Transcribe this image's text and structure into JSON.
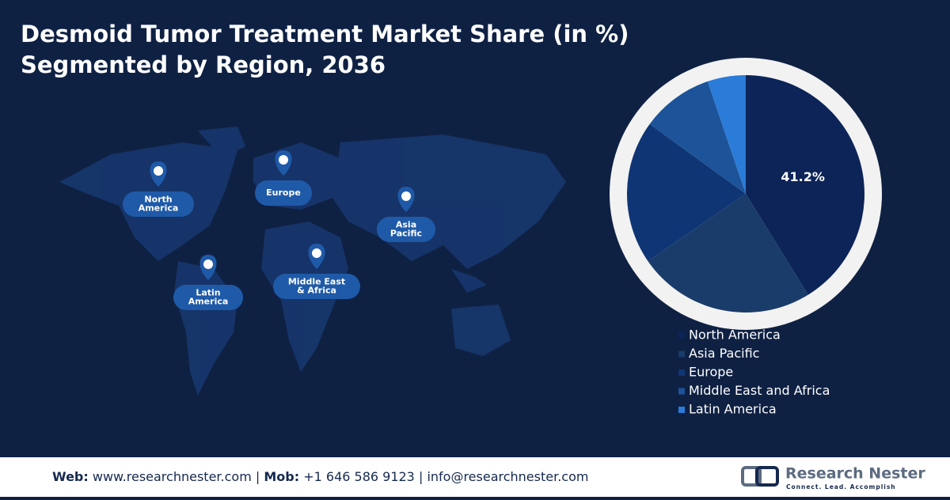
{
  "chart_data": {
    "type": "pie",
    "title": "Desmoid Tumor Treatment Market Share (in %)",
    "subtitle": "Segmented by Region, 2036",
    "categories": [
      "North America",
      "Asia Pacific",
      "Europe",
      "Middle East and Africa",
      "Latin America"
    ],
    "values": [
      41.2,
      24.2,
      19.6,
      9.8,
      5.2
    ],
    "value_labels": [
      "41.2%",
      null,
      null,
      null,
      null
    ],
    "colors": [
      "#0c2457",
      "#1a3c6a",
      "#0f3575",
      "#1d5398",
      "#2b7bd8"
    ],
    "legend": "bottom-right"
  },
  "map_labels": [
    [
      "North",
      "America"
    ],
    [
      "Europe"
    ],
    [
      "Asia",
      "Pacific"
    ],
    [
      "Middle East",
      "& Africa"
    ],
    [
      "Latin",
      "America"
    ]
  ],
  "footer": {
    "web_label": "Web:",
    "web": "www.researchnester.com",
    "separator": "|",
    "mob_label": "Mob:",
    "mob": "+1 646 586 9123",
    "email": "info@researchnester.com"
  },
  "logo": {
    "name": "Research Nester",
    "tagline": "Connect. Lead. Accomplish"
  }
}
